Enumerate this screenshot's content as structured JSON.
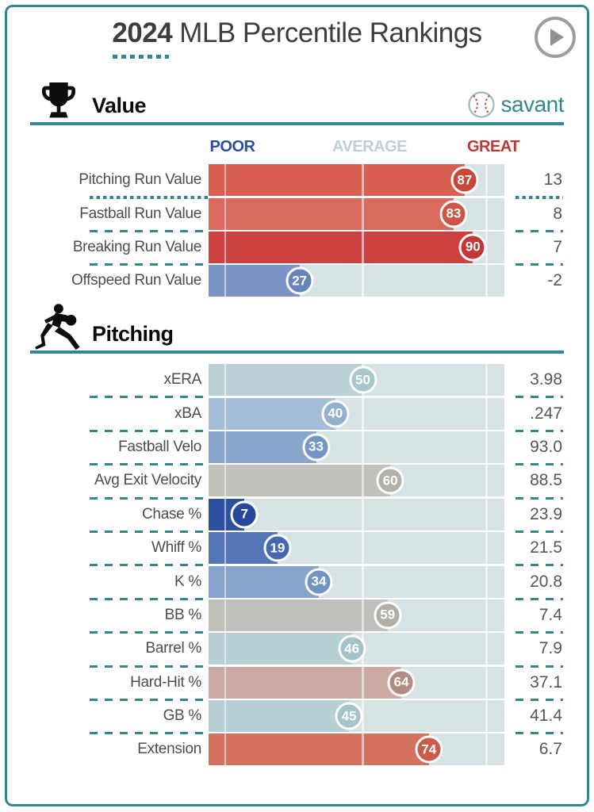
{
  "header": {
    "season": "2024",
    "title": "MLB Percentile Rankings"
  },
  "brand": {
    "name": "savant"
  },
  "scale": {
    "poor": "POOR",
    "average": "AVERAGE",
    "great": "GREAT"
  },
  "colors": {
    "accent": "#35878d",
    "poor": "#2c4e9e",
    "avg": "#bdd0d7",
    "great": "#c23538",
    "track": "#d7e2e4",
    "title-color": "#3d3d3d",
    "label-color": "#4d4d4d"
  },
  "sections": [
    {
      "title": "Value",
      "icon": "trophy-icon",
      "rows": [
        {
          "label": "Pitching Run Value",
          "pct": 87,
          "value": "13",
          "bar": "#d85f50",
          "circle": "#c74937",
          "sep": "dotted"
        },
        {
          "label": "Fastball Run Value",
          "pct": 83,
          "value": "8",
          "bar": "#da6a5d",
          "circle": "#cd5546",
          "sep": "dashed"
        },
        {
          "label": "Breaking Run Value",
          "pct": 90,
          "value": "7",
          "bar": "#ce4141",
          "circle": "#c23636",
          "sep": "dashed"
        },
        {
          "label": "Offspeed Run Value",
          "pct": 27,
          "value": "-2",
          "bar": "#7b94c5",
          "circle": "#6784bb",
          "sep": "none"
        }
      ]
    },
    {
      "title": "Pitching",
      "icon": "pitcher-icon",
      "rows": [
        {
          "label": "xERA",
          "pct": 50,
          "value": "3.98",
          "bar": "#bad2d6",
          "circle": "#a8c7cc",
          "sep": "dashed"
        },
        {
          "label": "xBA",
          "pct": 40,
          "value": ".247",
          "bar": "#a4bed7",
          "circle": "#91b1cd",
          "sep": "dashed"
        },
        {
          "label": "Fastball Velo",
          "pct": 33,
          "value": "93.0",
          "bar": "#88a5cc",
          "circle": "#7496c3",
          "sep": "dashed"
        },
        {
          "label": "Avg Exit Velocity",
          "pct": 60,
          "value": "88.5",
          "bar": "#c2c0ba",
          "circle": "#b2b0a8",
          "sep": "dashed"
        },
        {
          "label": "Chase %",
          "pct": 7,
          "value": "23.9",
          "bar": "#2e52a1",
          "circle": "#26489b",
          "sep": "dashed"
        },
        {
          "label": "Whiff %",
          "pct": 19,
          "value": "21.5",
          "bar": "#5475b6",
          "circle": "#4568af",
          "sep": "dashed"
        },
        {
          "label": "K %",
          "pct": 34,
          "value": "20.8",
          "bar": "#86a3cb",
          "circle": "#7294c1",
          "sep": "dashed"
        },
        {
          "label": "BB %",
          "pct": 59,
          "value": "7.4",
          "bar": "#c1bfb9",
          "circle": "#b0aea6",
          "sep": "dashed"
        },
        {
          "label": "Barrel %",
          "pct": 46,
          "value": "7.9",
          "bar": "#b6d0d4",
          "circle": "#a3c3c9",
          "sep": "dashed"
        },
        {
          "label": "Hard-Hit %",
          "pct": 64,
          "value": "37.1",
          "bar": "#caaaa2",
          "circle": "#b28c82",
          "sep": "dashed"
        },
        {
          "label": "GB %",
          "pct": 45,
          "value": "41.4",
          "bar": "#b7d0d4",
          "circle": "#a4c4ca",
          "sep": "dashed"
        },
        {
          "label": "Extension",
          "pct": 74,
          "value": "6.7",
          "bar": "#d4725f",
          "circle": "#c75d4a",
          "sep": "none"
        }
      ]
    }
  ],
  "chart_data": [
    {
      "type": "bar",
      "title": "Value",
      "categories": [
        "Pitching Run Value",
        "Fastball Run Value",
        "Breaking Run Value",
        "Offspeed Run Value"
      ],
      "series": [
        {
          "name": "percentile",
          "values": [
            87,
            83,
            90,
            27
          ]
        },
        {
          "name": "stat_value",
          "values": [
            13,
            8,
            7,
            -2
          ]
        }
      ],
      "xlim": [
        0,
        100
      ],
      "annotations": [
        "POOR",
        "AVERAGE",
        "GREAT"
      ],
      "orientation": "horizontal",
      "legend": "none"
    },
    {
      "type": "bar",
      "title": "Pitching",
      "categories": [
        "xERA",
        "xBA",
        "Fastball Velo",
        "Avg Exit Velocity",
        "Chase %",
        "Whiff %",
        "K %",
        "BB %",
        "Barrel %",
        "Hard-Hit %",
        "GB %",
        "Extension"
      ],
      "series": [
        {
          "name": "percentile",
          "values": [
            50,
            40,
            33,
            60,
            7,
            19,
            34,
            59,
            46,
            64,
            45,
            74
          ]
        },
        {
          "name": "stat_value",
          "values": [
            3.98,
            0.247,
            93.0,
            88.5,
            23.9,
            21.5,
            20.8,
            7.4,
            7.9,
            37.1,
            41.4,
            6.7
          ]
        }
      ],
      "xlim": [
        0,
        100
      ],
      "orientation": "horizontal",
      "legend": "none"
    }
  ]
}
